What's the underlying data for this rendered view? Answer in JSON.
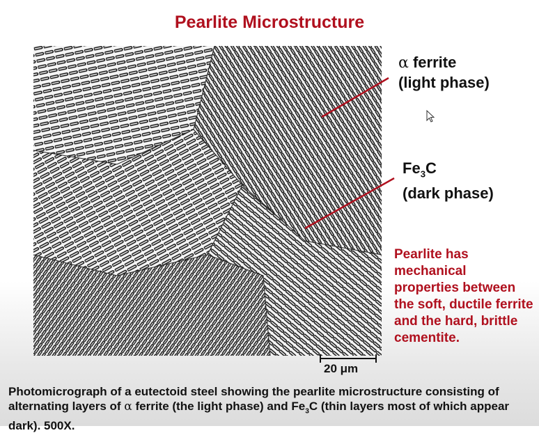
{
  "slide": {
    "title": "Pearlite Microstructure",
    "labels": {
      "ferrite_symbol": "α",
      "ferrite_text": " ferrite",
      "ferrite_sub": "(light phase)",
      "cementite_main": "Fe",
      "cementite_subscript": "3",
      "cementite_tail": "C",
      "cementite_sub": "(dark phase)"
    },
    "scale_bar": "20 μm",
    "note": "Pearlite has mechanical properties between the soft, ductile ferrite and the hard, brittle cementite.",
    "caption": {
      "part1": "Photomicrograph of a eutectoid steel showing the pearlite microstructure consisting of alternating layers of ",
      "alpha": "α",
      "part2": " ferrite (the light phase) and Fe",
      "subscript": "3",
      "part3": "C (thin layers most of which appear dark). 500X."
    }
  },
  "colors": {
    "title": "#b0101e",
    "note": "#b0101e",
    "arrow": "#b0101e",
    "text": "#111111"
  },
  "icons": [
    "mouse-cursor-icon",
    "pointer-arrow-icon"
  ]
}
